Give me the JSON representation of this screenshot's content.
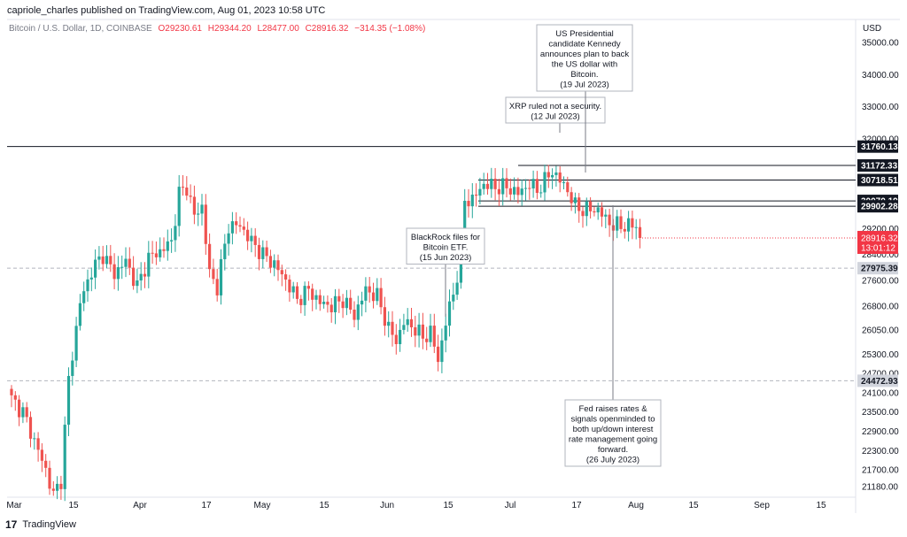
{
  "header": {
    "publisher_line": "capriole_charles published on TradingView.com, Aug 01, 2023 10:58 UTC"
  },
  "legend": {
    "symbol": "Bitcoin / U.S. Dollar, 1D, COINBASE",
    "open": "O29230.61",
    "high": "H29344.20",
    "low": "L28477.00",
    "close": "C28916.32",
    "change": "−314.35 (−1.08%)"
  },
  "axis": {
    "currency": "USD"
  },
  "footer": {
    "brand": "TradingView"
  },
  "colors": {
    "up": "#26a69a",
    "down": "#ef5350",
    "price_tag_bg": "#f23645",
    "level_tag_bg": "#131722",
    "grey_tag_bg": "#d1d4dc"
  },
  "chart_data": {
    "type": "candlestick",
    "ylim": [
      21000,
      35500
    ],
    "y_ticks": [
      "35000.00",
      "34000.00",
      "33000.00",
      "32000.00",
      "31760.13",
      "31172.33",
      "30718.51",
      "30070.19",
      "29902.28",
      "29200.00",
      "28916.32",
      "28400.00",
      "27975.39",
      "27600.00",
      "26800.00",
      "26050.00",
      "25300.00",
      "24700.00",
      "24472.93",
      "24100.00",
      "23500.00",
      "22900.00",
      "22300.00",
      "21700.00",
      "21180.00"
    ],
    "x_ticks": [
      "Mar",
      "15",
      "Apr",
      "17",
      "May",
      "15",
      "Jun",
      "15",
      "Jul",
      "17",
      "Aug",
      "15",
      "Sep",
      "15"
    ],
    "countdown": "13:01:12",
    "last_price": "28916.32",
    "levels": [
      {
        "value": 31760.13,
        "label": "31760.13",
        "style": "solid-full"
      },
      {
        "value": 31172.33,
        "label": "31172.33",
        "style": "solid"
      },
      {
        "value": 30718.51,
        "label": "30718.51",
        "style": "solid"
      },
      {
        "value": 30070.19,
        "label": "30070.19",
        "style": "solid"
      },
      {
        "value": 29902.28,
        "label": "29902.28",
        "style": "solid"
      },
      {
        "value": 27975.39,
        "label": "27975.39",
        "style": "dashed"
      },
      {
        "value": 24472.93,
        "label": "24472.93",
        "style": "dashed"
      }
    ],
    "annotations": [
      {
        "lines": [
          "BlackRock files for",
          "Bitcoin ETF.",
          "(15 Jun 2023)"
        ]
      },
      {
        "lines": [
          "XRP ruled not a security.",
          "(12 Jul 2023)"
        ]
      },
      {
        "lines": [
          "US Presidential",
          "candidate Kennedy",
          "announces plan to back",
          "the US dollar with",
          "Bitcoin.",
          "(19 Jul 2023)"
        ]
      },
      {
        "lines": [
          "Fed raises rates &",
          "signals openminded to",
          "both up/down interest",
          "rate management going",
          "forward.",
          "(26 July 2023)"
        ]
      }
    ]
  }
}
